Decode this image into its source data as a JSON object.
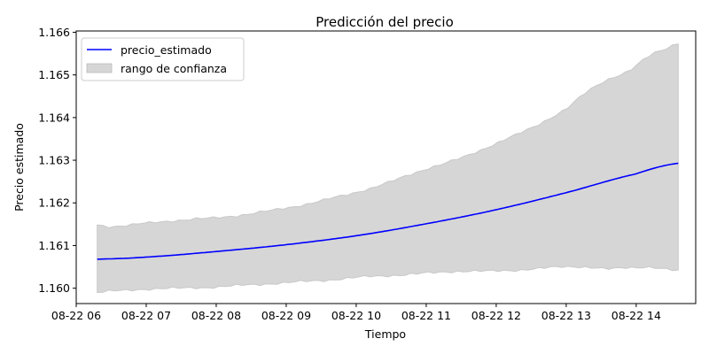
{
  "chart_data": {
    "type": "line",
    "title": "Predicción del precio",
    "xlabel": "Tiempo",
    "ylabel": "Precio estimado",
    "x_ticks": [
      "08-22 06",
      "08-22 07",
      "08-22 08",
      "08-22 09",
      "08-22 10",
      "08-22 11",
      "08-22 12",
      "08-22 13",
      "08-22 14"
    ],
    "x_range_hours": [
      6.0,
      14.85
    ],
    "x_start_hour": 6.3,
    "x_end_hour": 14.6,
    "y_ticks": [
      "1.160",
      "1.161",
      "1.162",
      "1.163",
      "1.164",
      "1.165",
      "1.166"
    ],
    "ylim": [
      1.15964,
      1.16603
    ],
    "grid": false,
    "legend_position": "top-left",
    "series": [
      {
        "name": "precio_estimado",
        "kind": "line",
        "color": "#0000ff",
        "x_hours": [
          6.3,
          7.0,
          8.0,
          9.0,
          10.0,
          11.0,
          12.0,
          13.0,
          14.0,
          14.6
        ],
        "values": [
          1.16068,
          1.16073,
          1.16086,
          1.16102,
          1.16123,
          1.16151,
          1.16184,
          1.16224,
          1.16268,
          1.16293
        ]
      },
      {
        "name": "rango de confianza",
        "kind": "band",
        "color": "#d6d6d6",
        "x_hours": [
          6.3,
          6.5,
          7.0,
          7.5,
          8.0,
          8.5,
          9.0,
          9.5,
          10.0,
          10.5,
          11.0,
          11.5,
          12.0,
          12.5,
          13.0,
          13.3,
          13.6,
          13.9,
          14.2,
          14.4,
          14.6
        ],
        "upper": [
          1.16148,
          1.16145,
          1.16152,
          1.1616,
          1.16165,
          1.16175,
          1.16188,
          1.16205,
          1.16225,
          1.1625,
          1.1628,
          1.16305,
          1.1634,
          1.16375,
          1.1642,
          1.1646,
          1.1649,
          1.1651,
          1.16545,
          1.1656,
          1.16575
        ],
        "lower": [
          1.1599,
          1.15993,
          1.15998,
          1.16,
          1.16003,
          1.16008,
          1.16013,
          1.16018,
          1.16025,
          1.1603,
          1.16035,
          1.1604,
          1.1604,
          1.16045,
          1.1605,
          1.1605,
          1.16045,
          1.16048,
          1.1605,
          1.16045,
          1.1604
        ]
      }
    ]
  }
}
